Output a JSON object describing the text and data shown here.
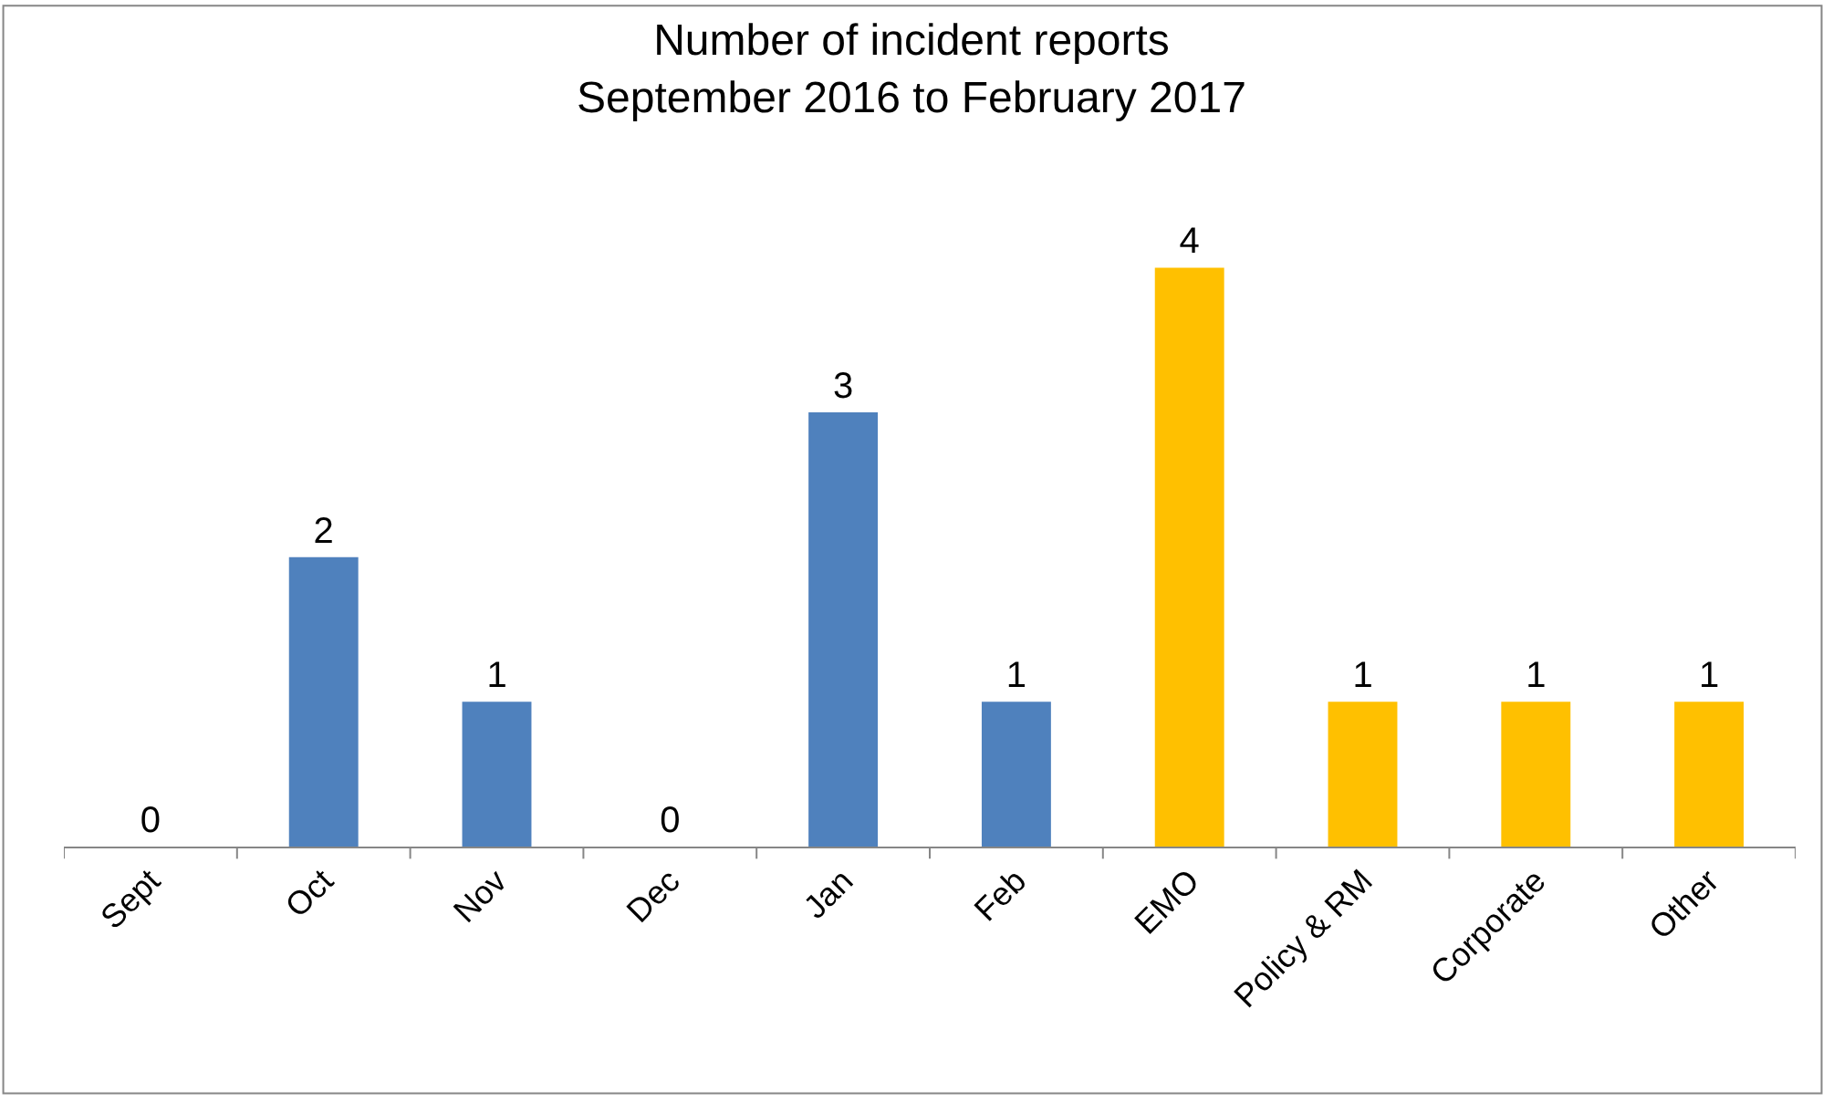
{
  "chart_data": {
    "type": "bar",
    "title": "Number of incident reports\nSeptember 2016 to February 2017",
    "categories": [
      "Sept",
      "Oct",
      "Nov",
      "Dec",
      "Jan",
      "Feb",
      "EMO",
      "Policy & RM",
      "Corporate",
      "Other"
    ],
    "values": [
      0,
      2,
      1,
      0,
      3,
      1,
      4,
      1,
      1,
      1
    ],
    "colors": [
      "#4f81bd",
      "#4f81bd",
      "#4f81bd",
      "#4f81bd",
      "#4f81bd",
      "#4f81bd",
      "#ffc000",
      "#ffc000",
      "#ffc000",
      "#ffc000"
    ],
    "data_labels": true
  }
}
